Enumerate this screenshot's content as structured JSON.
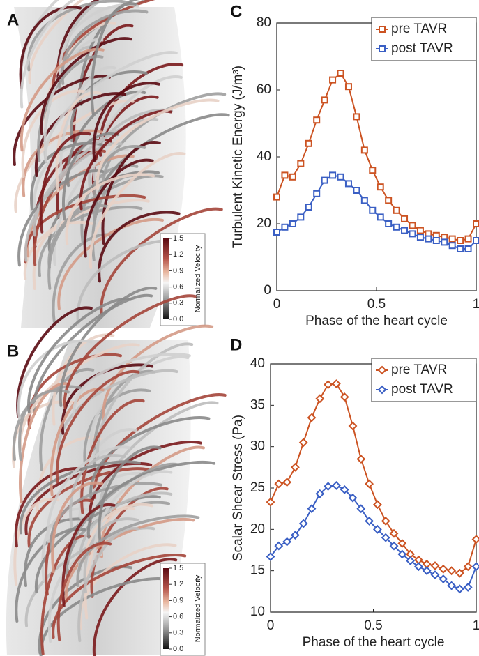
{
  "panels": [
    {
      "label": "A",
      "colorbar": {
        "title": "Normalized Velocity",
        "ticks": [
          1.5,
          1.2,
          0.9,
          0.6,
          0.3,
          {
            "value": 0,
            "label": "0.0"
          }
        ]
      }
    },
    {
      "label": "B",
      "colorbar": {
        "title": "Normalized Velocity",
        "ticks": [
          1.5,
          1.2,
          0.9,
          0.6,
          0.3,
          {
            "value": 0,
            "label": "0.0"
          }
        ]
      }
    }
  ],
  "chart_data": [
    {
      "type": "line",
      "panel_label": "C",
      "x_label": "Phase of the heart cycle",
      "y_label": "Turbulent Kinetic Energy (J/m³)",
      "x": [
        0,
        0.04,
        0.08,
        0.12,
        0.16,
        0.2,
        0.24,
        0.28,
        0.32,
        0.36,
        0.4,
        0.44,
        0.48,
        0.52,
        0.56,
        0.6,
        0.64,
        0.68,
        0.72,
        0.76,
        0.8,
        0.84,
        0.88,
        0.92,
        0.96,
        1
      ],
      "series": [
        {
          "name": "pre TAVR",
          "color": "#cc5322",
          "marker": "square",
          "values": [
            28,
            34.5,
            34,
            38,
            44,
            51,
            57,
            63,
            65,
            61,
            52,
            42,
            36,
            31,
            27,
            24,
            21.5,
            19.5,
            18,
            17,
            16.5,
            16,
            15.5,
            15,
            15.5,
            20
          ]
        },
        {
          "name": "post TAVR",
          "color": "#3a5fc4",
          "marker": "square",
          "values": [
            17.5,
            19,
            20,
            22,
            25,
            29,
            33,
            34.5,
            34,
            32,
            30,
            27,
            24,
            22,
            20,
            19,
            18,
            17,
            16,
            15.5,
            15,
            14.5,
            13.5,
            12.5,
            12.5,
            15
          ]
        }
      ],
      "xlim": [
        0,
        1
      ],
      "xticks": [
        0,
        0.5,
        1
      ],
      "ylim": [
        0,
        80
      ],
      "yticks": [
        0,
        20,
        40,
        60,
        80
      ],
      "legend": "top-right",
      "grid": false
    },
    {
      "type": "line",
      "panel_label": "D",
      "x_label": "Phase of the heart cycle",
      "y_label": "Scalar Shear Stress (Pa)",
      "x": [
        0,
        0.04,
        0.08,
        0.12,
        0.16,
        0.2,
        0.24,
        0.28,
        0.32,
        0.36,
        0.4,
        0.44,
        0.48,
        0.52,
        0.56,
        0.6,
        0.64,
        0.68,
        0.72,
        0.76,
        0.8,
        0.84,
        0.88,
        0.92,
        0.96,
        1
      ],
      "series": [
        {
          "name": "pre TAVR",
          "color": "#cc5322",
          "marker": "diamond",
          "values": [
            23.3,
            25.5,
            25.7,
            27.5,
            30.5,
            33.5,
            35.8,
            37.5,
            37.6,
            36,
            32.5,
            28.5,
            25.5,
            23,
            21,
            19.5,
            18.3,
            17,
            16.3,
            15.8,
            15.6,
            15.2,
            15,
            14.7,
            15.5,
            18.8
          ]
        },
        {
          "name": "post TAVR",
          "color": "#3a5fc4",
          "marker": "diamond",
          "values": [
            16.7,
            18,
            18.5,
            19.3,
            20.7,
            22.5,
            24.3,
            25.2,
            25.3,
            24.8,
            23.8,
            22.5,
            21,
            20,
            19,
            18,
            17,
            16.2,
            15.5,
            15,
            14.5,
            14,
            13.2,
            12.8,
            13,
            15.5
          ]
        }
      ],
      "xlim": [
        0,
        1
      ],
      "xticks": [
        0,
        0.5,
        1
      ],
      "ylim": [
        10,
        40
      ],
      "yticks": [
        10,
        15,
        20,
        25,
        30,
        35,
        40
      ],
      "legend": "top-right",
      "grid": false
    }
  ]
}
